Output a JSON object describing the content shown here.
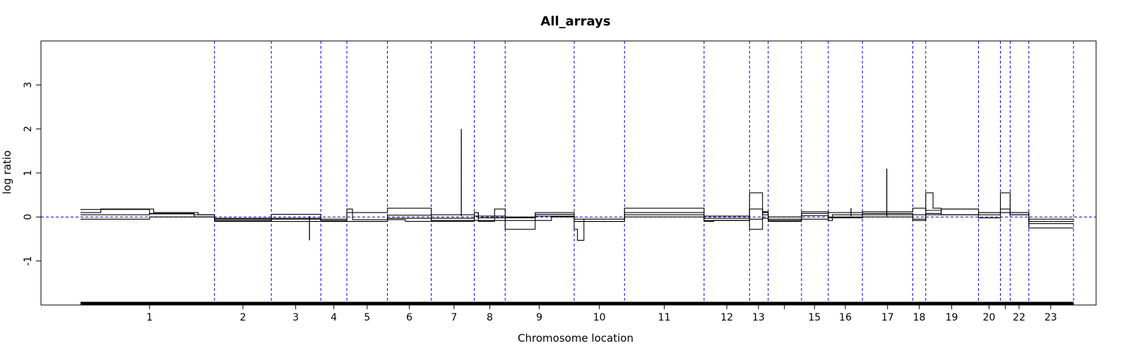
{
  "chart_data": {
    "type": "line",
    "title": "All_arrays",
    "xlabel": "Chromosome location",
    "ylabel": "log ratio",
    "ylim": [
      -2,
      4
    ],
    "yticks": [
      -1,
      0,
      1,
      2,
      3
    ],
    "y_reference_line": 0,
    "colors": {
      "series": "#000000",
      "boundaries": "#0000ff",
      "frame": "#000000"
    },
    "chromosomes": [
      {
        "label": "1",
        "start": 0.0,
        "end": 16.5
      },
      {
        "label": "2",
        "start": 16.5,
        "end": 23.5
      },
      {
        "label": "3",
        "start": 23.5,
        "end": 29.6
      },
      {
        "label": "4",
        "start": 29.6,
        "end": 32.8
      },
      {
        "label": "5",
        "start": 32.8,
        "end": 37.8
      },
      {
        "label": "6",
        "start": 37.8,
        "end": 43.2
      },
      {
        "label": "7",
        "start": 43.2,
        "end": 48.5
      },
      {
        "label": "8",
        "start": 48.5,
        "end": 52.3
      },
      {
        "label": "9",
        "start": 52.3,
        "end": 60.8
      },
      {
        "label": "10",
        "start": 60.8,
        "end": 67.0
      },
      {
        "label": "11",
        "start": 67.0,
        "end": 76.8
      },
      {
        "label": "12",
        "start": 76.8,
        "end": 82.4
      },
      {
        "label": "13",
        "start": 82.4,
        "end": 84.7
      },
      {
        "label": "",
        "start": 84.7,
        "end": 88.8
      },
      {
        "label": "15",
        "start": 88.8,
        "end": 92.1
      },
      {
        "label": "16",
        "start": 92.1,
        "end": 96.3
      },
      {
        "label": "17",
        "start": 96.3,
        "end": 102.5
      },
      {
        "label": "18",
        "start": 102.5,
        "end": 104.1
      },
      {
        "label": "19",
        "start": 104.1,
        "end": 110.6
      },
      {
        "label": "20",
        "start": 110.6,
        "end": 113.3
      },
      {
        "label": "",
        "start": 113.3,
        "end": 114.5
      },
      {
        "label": "22",
        "start": 114.5,
        "end": 116.8
      },
      {
        "label": "23",
        "start": 116.8,
        "end": 122.3
      }
    ],
    "xtick_positions": [
      8.5,
      20.0,
      26.5,
      31.2,
      35.3,
      40.5,
      46.0,
      50.4,
      56.5,
      63.9,
      71.9,
      79.6,
      83.5,
      86.7,
      90.4,
      94.2,
      99.4,
      103.3,
      107.3,
      111.9,
      113.9,
      115.6,
      119.5
    ],
    "genome_end": 122.3,
    "series": [
      {
        "steps": [
          [
            0,
            0.17
          ],
          [
            8.5,
            0.07
          ],
          [
            14,
            0.0
          ],
          [
            16.5,
            -0.1
          ],
          [
            23.5,
            0.06
          ],
          [
            29.6,
            -0.1
          ],
          [
            33,
            -0.1
          ],
          [
            37.8,
            0.04
          ],
          [
            40,
            0.04
          ],
          [
            43.2,
            -0.08
          ],
          [
            48.5,
            0.02
          ],
          [
            52.3,
            -0.08
          ],
          [
            56,
            0.1
          ],
          [
            60.8,
            -0.1
          ],
          [
            67,
            0.05
          ],
          [
            76.8,
            -0.08
          ],
          [
            80,
            -0.08
          ],
          [
            82.4,
            0.18
          ],
          [
            84,
            0.12
          ],
          [
            84.7,
            -0.1
          ],
          [
            88.8,
            0.12
          ],
          [
            92.1,
            -0.02
          ],
          [
            96.3,
            0.12
          ],
          [
            102.5,
            0.2
          ],
          [
            104.1,
            0.15
          ],
          [
            106,
            0.18
          ],
          [
            110.6,
            0.1
          ],
          [
            114.5,
            0.05
          ],
          [
            116.8,
            -0.05
          ],
          [
            122.3,
            -0.05
          ]
        ],
        "spikes": [
          [
            28.2,
            -0.53
          ],
          [
            46.9,
            2.0
          ],
          [
            99.3,
            1.1
          ]
        ]
      },
      {
        "steps": [
          [
            0,
            0.1
          ],
          [
            2.5,
            0.18
          ],
          [
            8.5,
            0.18
          ],
          [
            9,
            0.1
          ],
          [
            14,
            0.1
          ],
          [
            14.5,
            0.05
          ],
          [
            16.5,
            -0.05
          ],
          [
            23.5,
            -0.05
          ],
          [
            29.6,
            -0.05
          ],
          [
            32.8,
            0.1
          ],
          [
            37.8,
            0.2
          ],
          [
            43.2,
            0.05
          ],
          [
            48.5,
            0.1
          ],
          [
            49,
            -0.02
          ],
          [
            52.3,
            -0.02
          ],
          [
            56,
            0.06
          ],
          [
            60.8,
            -0.05
          ],
          [
            67,
            0.2
          ],
          [
            76.8,
            0.02
          ],
          [
            80,
            0.02
          ],
          [
            82.4,
            0.55
          ],
          [
            84,
            0.05
          ],
          [
            84.7,
            0.0
          ],
          [
            88.8,
            0.08
          ],
          [
            92.1,
            0.1
          ],
          [
            96.3,
            0.08
          ],
          [
            102.5,
            0.05
          ],
          [
            104.1,
            0.55
          ],
          [
            105,
            0.2
          ],
          [
            106,
            0.05
          ],
          [
            110.6,
            0.05
          ],
          [
            113.3,
            0.55
          ],
          [
            114.5,
            0.1
          ],
          [
            116.8,
            -0.1
          ],
          [
            122.3,
            -0.1
          ]
        ],
        "spikes": [
          [
            94.9,
            0.2
          ]
        ]
      },
      {
        "steps": [
          [
            0,
            0.05
          ],
          [
            2.5,
            0.05
          ],
          [
            8.5,
            0.08
          ],
          [
            14,
            0.05
          ],
          [
            16.5,
            -0.03
          ],
          [
            23.5,
            -0.03
          ],
          [
            29.6,
            -0.08
          ],
          [
            32.8,
            0.18
          ],
          [
            33.5,
            -0.06
          ],
          [
            37.8,
            -0.06
          ],
          [
            40,
            -0.1
          ],
          [
            43.2,
            -0.1
          ],
          [
            48.5,
            0.1
          ],
          [
            49,
            -0.1
          ],
          [
            51,
            0.18
          ],
          [
            52.3,
            0.0
          ],
          [
            56,
            0.02
          ],
          [
            60.8,
            -0.28
          ],
          [
            61.2,
            -0.53
          ],
          [
            62,
            -0.05
          ],
          [
            67,
            0.1
          ],
          [
            76.8,
            -0.03
          ],
          [
            82.4,
            -0.28
          ],
          [
            84,
            -0.03
          ],
          [
            84.7,
            -0.08
          ],
          [
            88.8,
            0.03
          ],
          [
            92.1,
            -0.08
          ],
          [
            92.6,
            0.05
          ],
          [
            96.3,
            0.05
          ],
          [
            102.5,
            -0.08
          ],
          [
            104.1,
            0.08
          ],
          [
            106,
            0.18
          ],
          [
            110.6,
            -0.02
          ],
          [
            113.3,
            0.18
          ],
          [
            114.5,
            0.05
          ],
          [
            116.8,
            -0.15
          ],
          [
            122.3,
            -0.15
          ]
        ],
        "spikes": []
      },
      {
        "steps": [
          [
            0,
            -0.05
          ],
          [
            2.5,
            -0.05
          ],
          [
            8.5,
            0.0
          ],
          [
            14,
            0.0
          ],
          [
            16.5,
            -0.08
          ],
          [
            23.5,
            -0.1
          ],
          [
            29.6,
            -0.1
          ],
          [
            32.8,
            -0.1
          ],
          [
            37.8,
            -0.03
          ],
          [
            43.2,
            -0.03
          ],
          [
            48.5,
            -0.08
          ],
          [
            52.3,
            -0.28
          ],
          [
            56,
            -0.08
          ],
          [
            58,
            0.0
          ],
          [
            60.8,
            -0.1
          ],
          [
            67,
            0.0
          ],
          [
            76.8,
            -0.1
          ],
          [
            78,
            -0.08
          ],
          [
            82.4,
            -0.05
          ],
          [
            84,
            0.1
          ],
          [
            84.7,
            -0.05
          ],
          [
            88.8,
            -0.05
          ],
          [
            92.1,
            0.0
          ],
          [
            96.3,
            0.0
          ],
          [
            102.5,
            -0.05
          ],
          [
            104.1,
            0.05
          ],
          [
            110.6,
            0.1
          ],
          [
            114.5,
            0.1
          ],
          [
            116.8,
            -0.25
          ],
          [
            122.3,
            -0.25
          ]
        ],
        "spikes": []
      }
    ]
  }
}
